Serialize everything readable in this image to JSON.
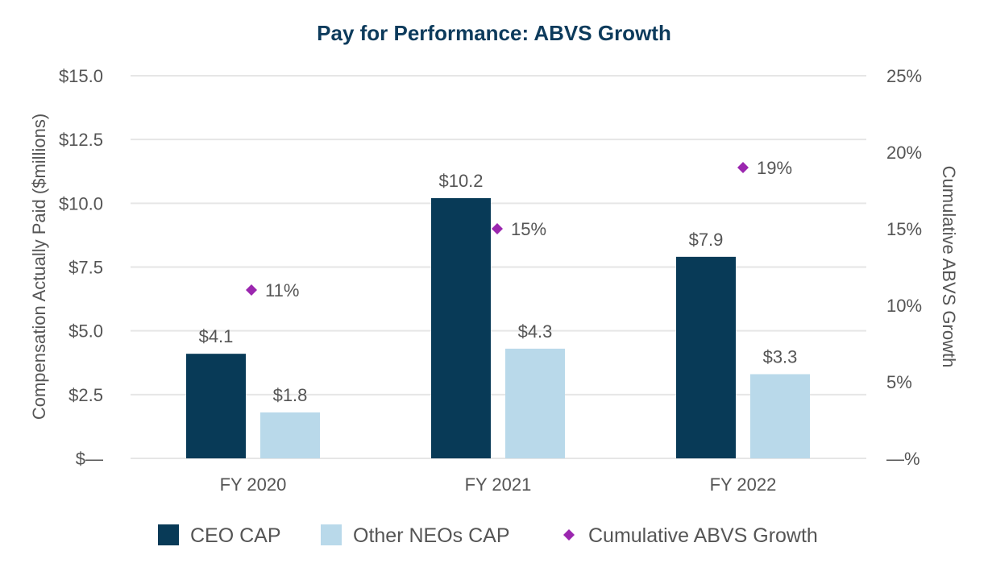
{
  "chart_data": {
    "type": "bar",
    "title": "Pay for Performance: ABVS Growth",
    "categories": [
      "FY 2020",
      "FY 2021",
      "FY 2022"
    ],
    "series": [
      {
        "name": "CEO CAP",
        "kind": "bar",
        "axis": "left",
        "color": "#083a57",
        "values": [
          4.1,
          10.2,
          7.9
        ],
        "labels": [
          "$4.1",
          "$10.2",
          "$7.9"
        ]
      },
      {
        "name": "Other NEOs CAP",
        "kind": "bar",
        "axis": "left",
        "color": "#b9d9ea",
        "values": [
          1.8,
          4.3,
          3.3
        ],
        "labels": [
          "$1.8",
          "$4.3",
          "$3.3"
        ]
      },
      {
        "name": "Cumulative ABVS Growth",
        "kind": "scatter",
        "axis": "right",
        "color": "#9b27af",
        "values": [
          11,
          15,
          19
        ],
        "labels": [
          "11%",
          "15%",
          "19%"
        ]
      }
    ],
    "ylabel": "Compensation Actually Paid ($millions)",
    "ylim": [
      0,
      15
    ],
    "yticks": [
      0,
      2.5,
      5,
      7.5,
      10,
      12.5,
      15
    ],
    "ytick_labels": [
      "$—",
      "$2.5",
      "$5.0",
      "$7.5",
      "$10.0",
      "$12.5",
      "$15.0"
    ],
    "y2label": "Cumulative ABVS Growth",
    "y2lim": [
      0,
      25
    ],
    "y2ticks": [
      0,
      5,
      10,
      15,
      20,
      25
    ],
    "y2tick_labels": [
      "—%",
      "5%",
      "10%",
      "15%",
      "20%",
      "25%"
    ],
    "grid": true,
    "legend_position": "bottom"
  }
}
